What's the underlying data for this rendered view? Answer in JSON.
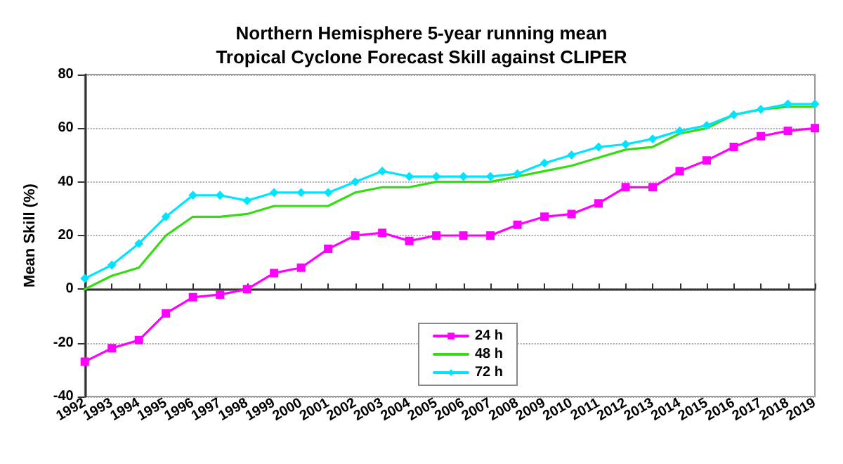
{
  "chart_data": {
    "type": "line",
    "title": "Northern Hemisphere 5-year running mean",
    "subtitle": "Tropical Cyclone Forecast Skill against CLIPER",
    "ylabel": "Mean Skill (%)",
    "categories": [
      "1992",
      "1993",
      "1994",
      "1995",
      "1996",
      "1997",
      "1998",
      "1999",
      "2000",
      "2001",
      "2002",
      "2003",
      "2004",
      "2005",
      "2006",
      "2007",
      "2008",
      "2009",
      "2010",
      "2011",
      "2012",
      "2013",
      "2014",
      "2015",
      "2016",
      "2017",
      "2018",
      "2019"
    ],
    "series": [
      {
        "name": "24 h",
        "color": "#ff00ff",
        "marker": "square",
        "values": [
          -27,
          -22,
          -19,
          -9,
          -3,
          -2,
          0,
          6,
          8,
          15,
          20,
          21,
          18,
          20,
          20,
          20,
          24,
          27,
          28,
          32,
          38,
          38,
          44,
          48,
          53,
          57,
          59,
          60
        ]
      },
      {
        "name": "48 h",
        "color": "#33dd11",
        "marker": "none",
        "values": [
          0,
          5,
          8,
          20,
          27,
          27,
          28,
          31,
          31,
          31,
          36,
          38,
          38,
          40,
          40,
          40,
          42,
          44,
          46,
          49,
          52,
          53,
          58,
          60,
          65,
          67,
          68,
          68
        ]
      },
      {
        "name": "72 h",
        "color": "#00e5ff",
        "marker": "diamond",
        "values": [
          4,
          9,
          17,
          27,
          35,
          35,
          33,
          36,
          36,
          36,
          40,
          44,
          42,
          42,
          42,
          42,
          43,
          47,
          50,
          53,
          54,
          56,
          59,
          61,
          65,
          67,
          69,
          69
        ]
      }
    ],
    "ylim": [
      -40,
      80
    ],
    "yticks": [
      -40,
      -20,
      0,
      20,
      40,
      60,
      80
    ],
    "grid": "y",
    "legend": "bottom"
  }
}
